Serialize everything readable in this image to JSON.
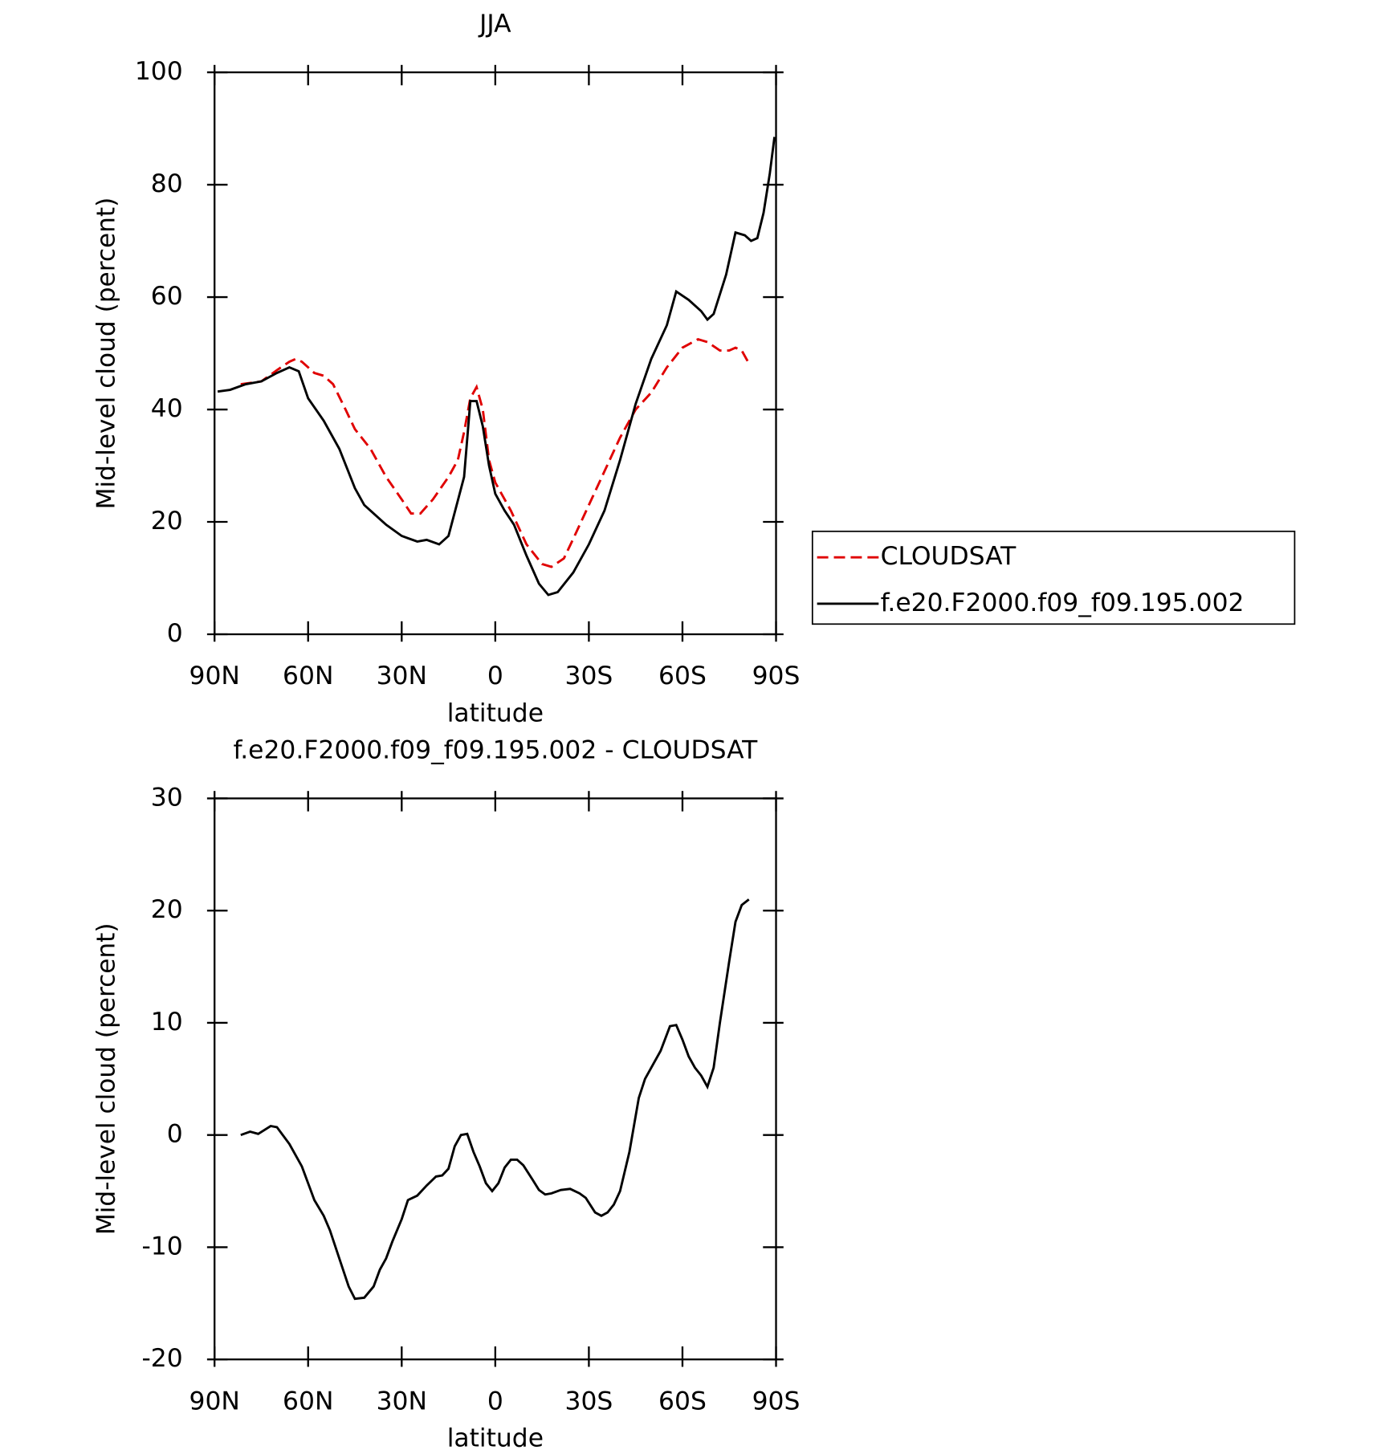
{
  "chart_data": [
    {
      "type": "line",
      "title": "JJA",
      "xlabel": "latitude",
      "ylabel": "Mid-level cloud (percent)",
      "xlim": [
        90,
        -90
      ],
      "xticks": [
        {
          "value": 90,
          "label": "90N"
        },
        {
          "value": 60,
          "label": "60N"
        },
        {
          "value": 30,
          "label": "30N"
        },
        0,
        {
          "value": -30,
          "label": "30S"
        },
        {
          "value": -60,
          "label": "60S"
        },
        {
          "value": -90,
          "label": "90S"
        }
      ],
      "ylim": [
        0,
        100
      ],
      "yticks": [
        0,
        20,
        40,
        60,
        80,
        100
      ],
      "legend": "right",
      "series": [
        {
          "name": "CLOUDSAT",
          "color": "#e00000",
          "line_style": "dashed",
          "x": [
            81.6,
            75,
            70,
            66,
            64,
            62,
            58,
            55,
            52,
            48,
            45,
            40,
            35,
            30,
            27,
            24,
            20,
            15,
            12,
            10,
            8,
            6,
            4,
            2,
            0,
            -5,
            -10,
            -15,
            -18,
            -22,
            -25,
            -30,
            -35,
            -40,
            -45,
            -50,
            -55,
            -60,
            -65,
            -68,
            -72,
            -75,
            -77,
            -79,
            -81
          ],
          "values": [
            44.5,
            45,
            47,
            48.5,
            49,
            48.5,
            46.5,
            46,
            44.5,
            40,
            36.5,
            33,
            28,
            24,
            21.5,
            21.5,
            24,
            28,
            31,
            36,
            42,
            44,
            40,
            31,
            27,
            22,
            16,
            12.5,
            12,
            13.5,
            17,
            23,
            29,
            35,
            40,
            43,
            47.5,
            51,
            52.5,
            52,
            50.5,
            50.5,
            51,
            50.5,
            48.5
          ]
        },
        {
          "name": "f.e20.F2000.f09_f09.195.002",
          "color": "#000000",
          "line_style": "solid",
          "x": [
            89,
            85,
            80,
            75,
            70,
            66,
            63,
            60,
            55,
            50,
            45,
            42,
            38,
            35,
            30,
            25,
            22,
            18,
            15,
            10,
            8,
            6,
            4,
            2,
            0,
            -3,
            -6,
            -10,
            -14,
            -17,
            -20,
            -25,
            -30,
            -35,
            -40,
            -45,
            -50,
            -55,
            -58,
            -62,
            -66,
            -68,
            -70,
            -74,
            -77,
            -80,
            -82,
            -84,
            -86,
            -88,
            -89.5
          ],
          "values": [
            43.2,
            43.5,
            44.5,
            45,
            46.5,
            47.5,
            46.8,
            42,
            38,
            33,
            26,
            23,
            21,
            19.5,
            17.5,
            16.5,
            16.8,
            16,
            17.5,
            28,
            41.5,
            41.5,
            37,
            30,
            25,
            22,
            19.5,
            14,
            9,
            7,
            7.5,
            11,
            16,
            22,
            31,
            41,
            49,
            55,
            61,
            59.5,
            57.5,
            56,
            57,
            64,
            71.5,
            71,
            70,
            70.5,
            75,
            82,
            88.5
          ]
        }
      ]
    },
    {
      "type": "line",
      "title": "f.e20.F2000.f09_f09.195.002 - CLOUDSAT",
      "xlabel": "latitude",
      "ylabel": "Mid-level cloud (percent)",
      "xlim": [
        90,
        -90
      ],
      "xticks": [
        {
          "value": 90,
          "label": "90N"
        },
        {
          "value": 60,
          "label": "60N"
        },
        {
          "value": 30,
          "label": "30N"
        },
        0,
        {
          "value": -30,
          "label": "30S"
        },
        {
          "value": -60,
          "label": "60S"
        },
        {
          "value": -90,
          "label": "90S"
        }
      ],
      "ylim": [
        -20,
        30
      ],
      "yticks": [
        -20,
        -10,
        0,
        10,
        20,
        30
      ],
      "series": [
        {
          "color": "#000000",
          "line_style": "solid",
          "x": [
            81.6,
            78.6,
            76,
            72,
            70,
            66,
            62,
            58,
            55,
            53,
            50,
            47,
            45,
            42,
            39,
            37,
            35,
            33,
            30,
            28,
            25,
            22,
            19,
            17,
            15,
            13,
            11,
            9,
            7,
            5,
            3,
            1,
            -1,
            -3,
            -5,
            -7,
            -9,
            -12,
            -14,
            -16,
            -18,
            -21,
            -24,
            -27,
            -29,
            -32,
            -34,
            -36,
            -38,
            -40,
            -43,
            -46,
            -48,
            -51,
            -53,
            -56,
            -58,
            -60,
            -62,
            -64,
            -66,
            -68,
            -70,
            -72,
            -75,
            -77,
            -79,
            -81.3
          ],
          "values": [
            0,
            0.3,
            0.1,
            0.8,
            0.7,
            -0.8,
            -2.8,
            -5.8,
            -7.2,
            -8.5,
            -11,
            -13.5,
            -14.6,
            -14.5,
            -13.5,
            -12,
            -11,
            -9.5,
            -7.5,
            -5.8,
            -5.4,
            -4.5,
            -3.7,
            -3.6,
            -3,
            -1,
            0,
            0.1,
            -1.5,
            -2.8,
            -4.3,
            -5,
            -4.3,
            -2.9,
            -2.2,
            -2.2,
            -2.7,
            -4,
            -4.9,
            -5.3,
            -5.2,
            -4.9,
            -4.8,
            -5.2,
            -5.6,
            -6.9,
            -7.2,
            -6.9,
            -6.2,
            -5,
            -1.5,
            3.3,
            5,
            6.5,
            7.5,
            9.7,
            9.8,
            8.5,
            7,
            6,
            5.3,
            4.3,
            6,
            10,
            15.5,
            19,
            20.5,
            21
          ]
        }
      ]
    }
  ]
}
